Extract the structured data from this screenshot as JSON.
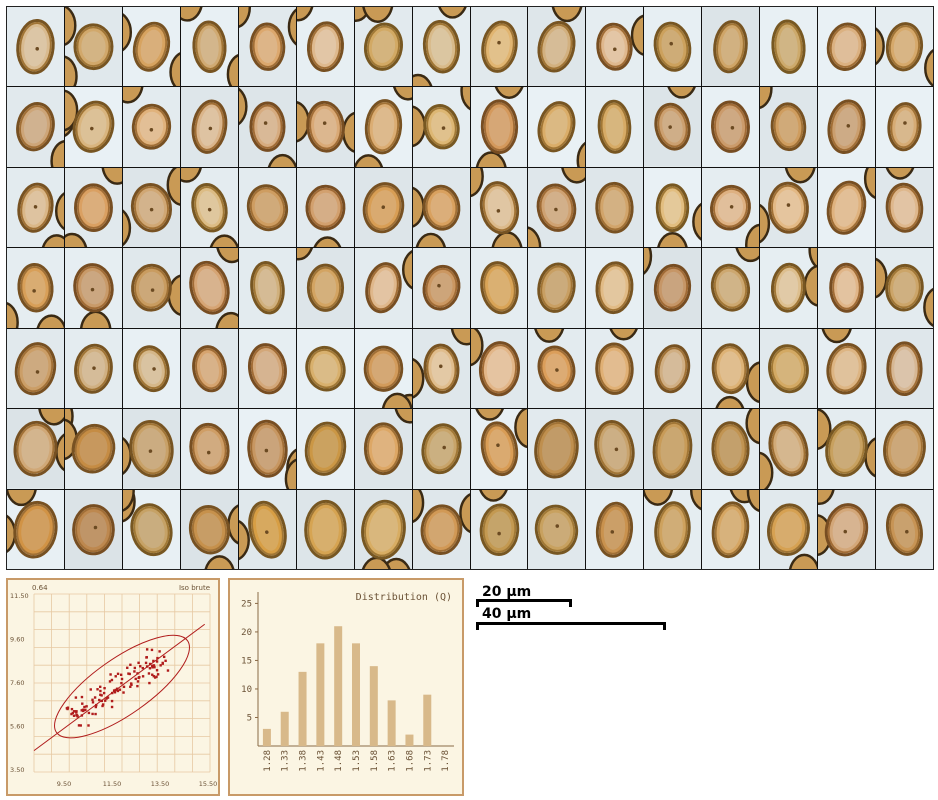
{
  "grid": {
    "rows": 7,
    "cols": 16
  },
  "scale_bars": [
    {
      "label": "20 µm"
    },
    {
      "label": "40 µm"
    }
  ],
  "scatter": {
    "corner_label": "0.64",
    "type_label": "Iso brute",
    "y_ticks": [
      "11.50",
      "9.60",
      "7.60",
      "5.60",
      "3.50"
    ],
    "x_ticks": [
      "9.50",
      "11.50",
      "13.50",
      "15.50"
    ],
    "colors": {
      "point": "#b01c1c",
      "ellipse": "#b01c1c",
      "grid": "#e7c9a3"
    }
  },
  "chart_data": {
    "type": "bar",
    "title": "Distribution (Q)",
    "categories": [
      "1.28",
      "1.33",
      "1.38",
      "1.43",
      "1.48",
      "1.53",
      "1.58",
      "1.63",
      "1.68",
      "1.73",
      "1.78"
    ],
    "values": [
      3,
      6,
      13,
      18,
      21,
      18,
      14,
      8,
      2,
      9,
      0
    ],
    "y_ticks": [
      "5",
      "10",
      "15",
      "20",
      "25"
    ],
    "ylim": [
      0,
      27
    ],
    "colors": {
      "bar": "#d8b98a",
      "axis": "#8a6a47",
      "text": "#6b5236"
    }
  }
}
